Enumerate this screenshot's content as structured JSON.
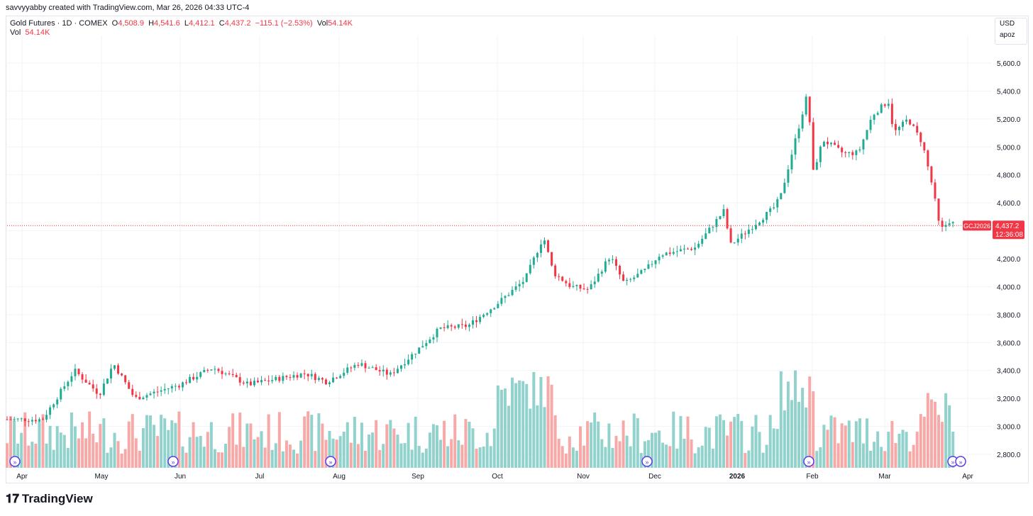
{
  "header": {
    "byline": "savvyyabby created with TradingView.com, Mar 26, 2026 04:33 UTC-4",
    "symbol": "Gold Futures · 1D · COMEX",
    "o_label": "O",
    "o_value": "4,508.9",
    "h_label": "H",
    "h_value": "4,541.6",
    "l_label": "L",
    "l_value": "4,412.1",
    "c_label": "C",
    "c_value": "4,437.2",
    "change": "−115.1 (−2.53%)",
    "vol_label": "Vol",
    "vol_value": "54.14K",
    "vol_row_label": "Vol",
    "vol_row_value": "54.14K"
  },
  "controls": {
    "currency": "USD",
    "scale": "apoz"
  },
  "price_tag": {
    "symbol": "GCJ2026",
    "price": "4,437.2",
    "countdown": "12:36:08"
  },
  "brand": {
    "name": "TradingView"
  },
  "colors": {
    "up": "#22ab94",
    "down": "#f23645",
    "up_vol": "#92d2cc",
    "down_vol": "#f7a9a7"
  },
  "chart_data": {
    "type": "candlestick",
    "ylim": [
      2700,
      5800
    ],
    "y_ticks": [
      "5,600.0",
      "5,400.0",
      "5,200.0",
      "5,000.0",
      "4,800.0",
      "4,600.0",
      "4,400.0",
      "4,200.0",
      "4,000.0",
      "3,800.0",
      "3,600.0",
      "3,400.0",
      "3,200.0",
      "3,000.0",
      "2,800.0"
    ],
    "y_tick_values": [
      5600,
      5400,
      5200,
      5000,
      4800,
      4600,
      4400,
      4200,
      4000,
      3800,
      3600,
      3400,
      3200,
      3000,
      2800
    ],
    "x_ticks": [
      "Apr",
      "May",
      "Jun",
      "Jul",
      "Aug",
      "Sep",
      "Oct",
      "Nov",
      "Dec",
      "2026",
      "Feb",
      "Mar",
      "Apr"
    ],
    "last_price": 4437.2,
    "monthly_closes": [
      {
        "month": "Apr",
        "value": 3300
      },
      {
        "month": "May",
        "value": 3290
      },
      {
        "month": "Jun",
        "value": 3310
      },
      {
        "month": "Jul",
        "value": 3350
      },
      {
        "month": "Aug",
        "value": 3450
      },
      {
        "month": "Sep",
        "value": 3880
      },
      {
        "month": "Oct",
        "value": 4000
      },
      {
        "month": "Nov",
        "value": 4230
      },
      {
        "month": "Dec",
        "value": 4340
      },
      {
        "month": "2026",
        "value": 5300
      },
      {
        "month": "Feb",
        "value": 5230
      },
      {
        "month": "Mar",
        "value": 4437.2
      }
    ],
    "key_points": [
      {
        "date": "Apr",
        "value": 3050
      },
      {
        "date": "Apr",
        "value": 3400
      },
      {
        "date": "May",
        "value": 3230
      },
      {
        "date": "Aug",
        "value": 3350
      },
      {
        "date": "Sep",
        "value": 3650
      },
      {
        "date": "Oct",
        "value": 4360
      },
      {
        "date": "Oct",
        "value": 4000
      },
      {
        "date": "Nov",
        "value": 4230
      },
      {
        "date": "2026",
        "value": 4350
      },
      {
        "date": "Feb",
        "value": 5600
      },
      {
        "date": "Feb",
        "value": 4750
      },
      {
        "date": "Mar",
        "value": 5350
      },
      {
        "date": "Mar",
        "value": 4100
      },
      {
        "date": "Mar",
        "value": 4437.2
      }
    ]
  }
}
